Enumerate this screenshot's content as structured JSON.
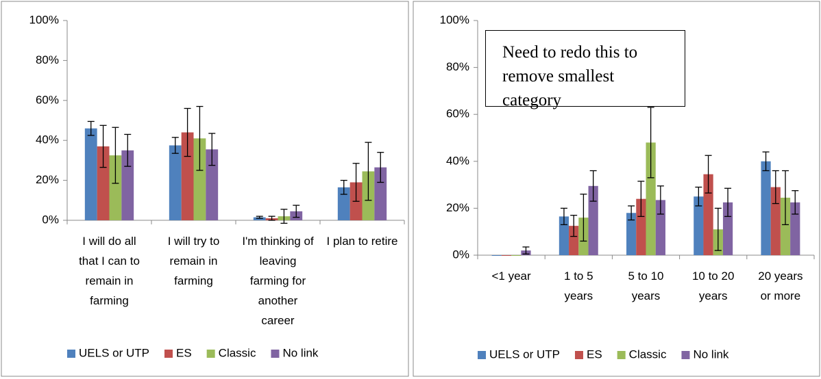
{
  "chart_data": [
    {
      "type": "bar",
      "categories": [
        "I will do all that I can to remain in farming",
        "I will try to remain in farming",
        "I'm thinking of leaving farming for another career",
        "I plan to retire"
      ],
      "series": [
        {
          "name": "UELS or UTP",
          "color": "#4f81bd",
          "values": [
            46,
            37.5,
            1.5,
            16.5
          ],
          "errors": [
            3.5,
            4,
            0.5,
            3.5
          ]
        },
        {
          "name": "ES",
          "color": "#c0504d",
          "values": [
            37,
            44,
            1,
            19
          ],
          "errors": [
            10.5,
            12,
            1,
            9.5
          ]
        },
        {
          "name": "Classic",
          "color": "#9bbb59",
          "values": [
            32.5,
            41,
            2,
            24.5
          ],
          "errors": [
            14,
            16,
            3.5,
            14.5
          ]
        },
        {
          "name": "No link",
          "color": "#8064a2",
          "values": [
            35,
            35.5,
            4.5,
            26.5
          ],
          "errors": [
            8,
            8,
            3,
            7.5
          ]
        }
      ],
      "ylim": [
        0,
        100
      ],
      "yticks": [
        {
          "value": 0,
          "label": "0%"
        },
        {
          "value": 20,
          "label": "20%"
        },
        {
          "value": 40,
          "label": "40%"
        },
        {
          "value": 60,
          "label": "60%"
        },
        {
          "value": 80,
          "label": "80%"
        },
        {
          "value": 100,
          "label": "100%"
        }
      ],
      "grid": false,
      "legend": "bottom"
    },
    {
      "type": "bar",
      "annotation": "Need to redo this to remove smallest category",
      "categories": [
        "<1 year",
        "1 to 5 years",
        "5 to 10 years",
        "10 to 20 years",
        "20 years or more"
      ],
      "series": [
        {
          "name": "UELS or UTP",
          "color": "#4f81bd",
          "values": [
            0,
            16.5,
            18,
            25,
            40
          ],
          "errors": [
            null,
            3.5,
            3,
            4,
            4
          ]
        },
        {
          "name": "ES",
          "color": "#c0504d",
          "values": [
            0,
            12.5,
            24,
            34.5,
            29
          ],
          "errors": [
            null,
            4.5,
            7.5,
            8,
            7
          ]
        },
        {
          "name": "Classic",
          "color": "#9bbb59",
          "values": [
            0,
            16,
            48,
            11,
            24.5
          ],
          "errors": [
            null,
            10,
            15,
            9,
            11.5
          ]
        },
        {
          "name": "No link",
          "color": "#8064a2",
          "values": [
            2,
            29.5,
            23.5,
            22.5,
            22.5
          ],
          "errors": [
            1.5,
            6.5,
            6,
            6,
            5
          ]
        }
      ],
      "ylim": [
        0,
        100
      ],
      "yticks": [
        {
          "value": 0,
          "label": "0%"
        },
        {
          "value": 20,
          "label": "20%"
        },
        {
          "value": 40,
          "label": "40%"
        },
        {
          "value": 60,
          "label": "60%"
        },
        {
          "value": 80,
          "label": "80%"
        },
        {
          "value": 100,
          "label": "100%"
        }
      ],
      "grid": false,
      "legend": "bottom"
    }
  ]
}
